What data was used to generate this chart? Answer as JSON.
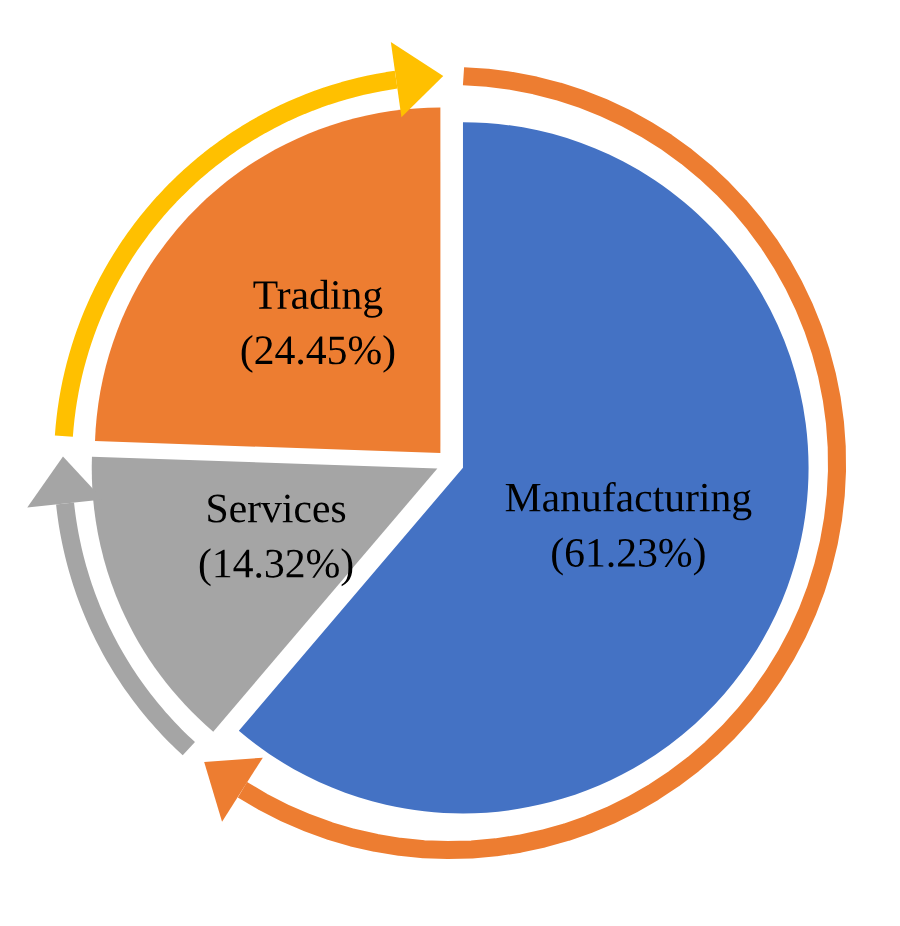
{
  "chart_data": {
    "type": "pie",
    "categories": [
      "Manufacturing",
      "Services",
      "Trading"
    ],
    "values": [
      61.23,
      14.32,
      24.45
    ],
    "value_labels": [
      "(61.23%)",
      "(14.32%)",
      "(24.45%)"
    ],
    "colors": [
      "#4472c4",
      "#a5a5a5",
      "#ed7d31"
    ],
    "legend": false
  }
}
